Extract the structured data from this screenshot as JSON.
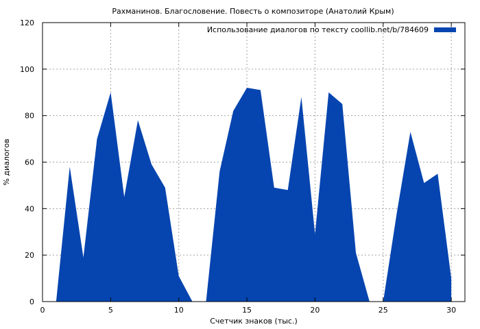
{
  "chart_data": {
    "type": "area",
    "title": "Рахманинов. Благословение. Повесть о композиторе (Анатолий Крым)",
    "xlabel": "Счетчик знаков (тыс.)",
    "ylabel": "% диалогов",
    "xlim": [
      0,
      31
    ],
    "ylim": [
      0,
      120
    ],
    "xticks": [
      0,
      5,
      10,
      15,
      20,
      25,
      30
    ],
    "yticks": [
      0,
      20,
      40,
      60,
      80,
      100,
      120
    ],
    "grid": true,
    "legend_position": "top-right",
    "series": [
      {
        "name": "Использование диалогов по тексту coollib.net/b/784609",
        "color": "#0645b0",
        "x": [
          1,
          2,
          3,
          4,
          5,
          6,
          7,
          8,
          9,
          10,
          11,
          12,
          13,
          14,
          15,
          16,
          17,
          18,
          19,
          20,
          21,
          22,
          23,
          24,
          25,
          26,
          27,
          28,
          29,
          30
        ],
        "values": [
          0,
          58,
          19,
          70,
          90,
          45,
          78,
          59,
          49,
          11,
          0,
          0,
          56,
          82,
          92,
          91,
          49,
          48,
          88,
          29,
          90,
          85,
          21,
          0,
          0,
          38,
          73,
          51,
          55,
          10
        ]
      }
    ]
  }
}
